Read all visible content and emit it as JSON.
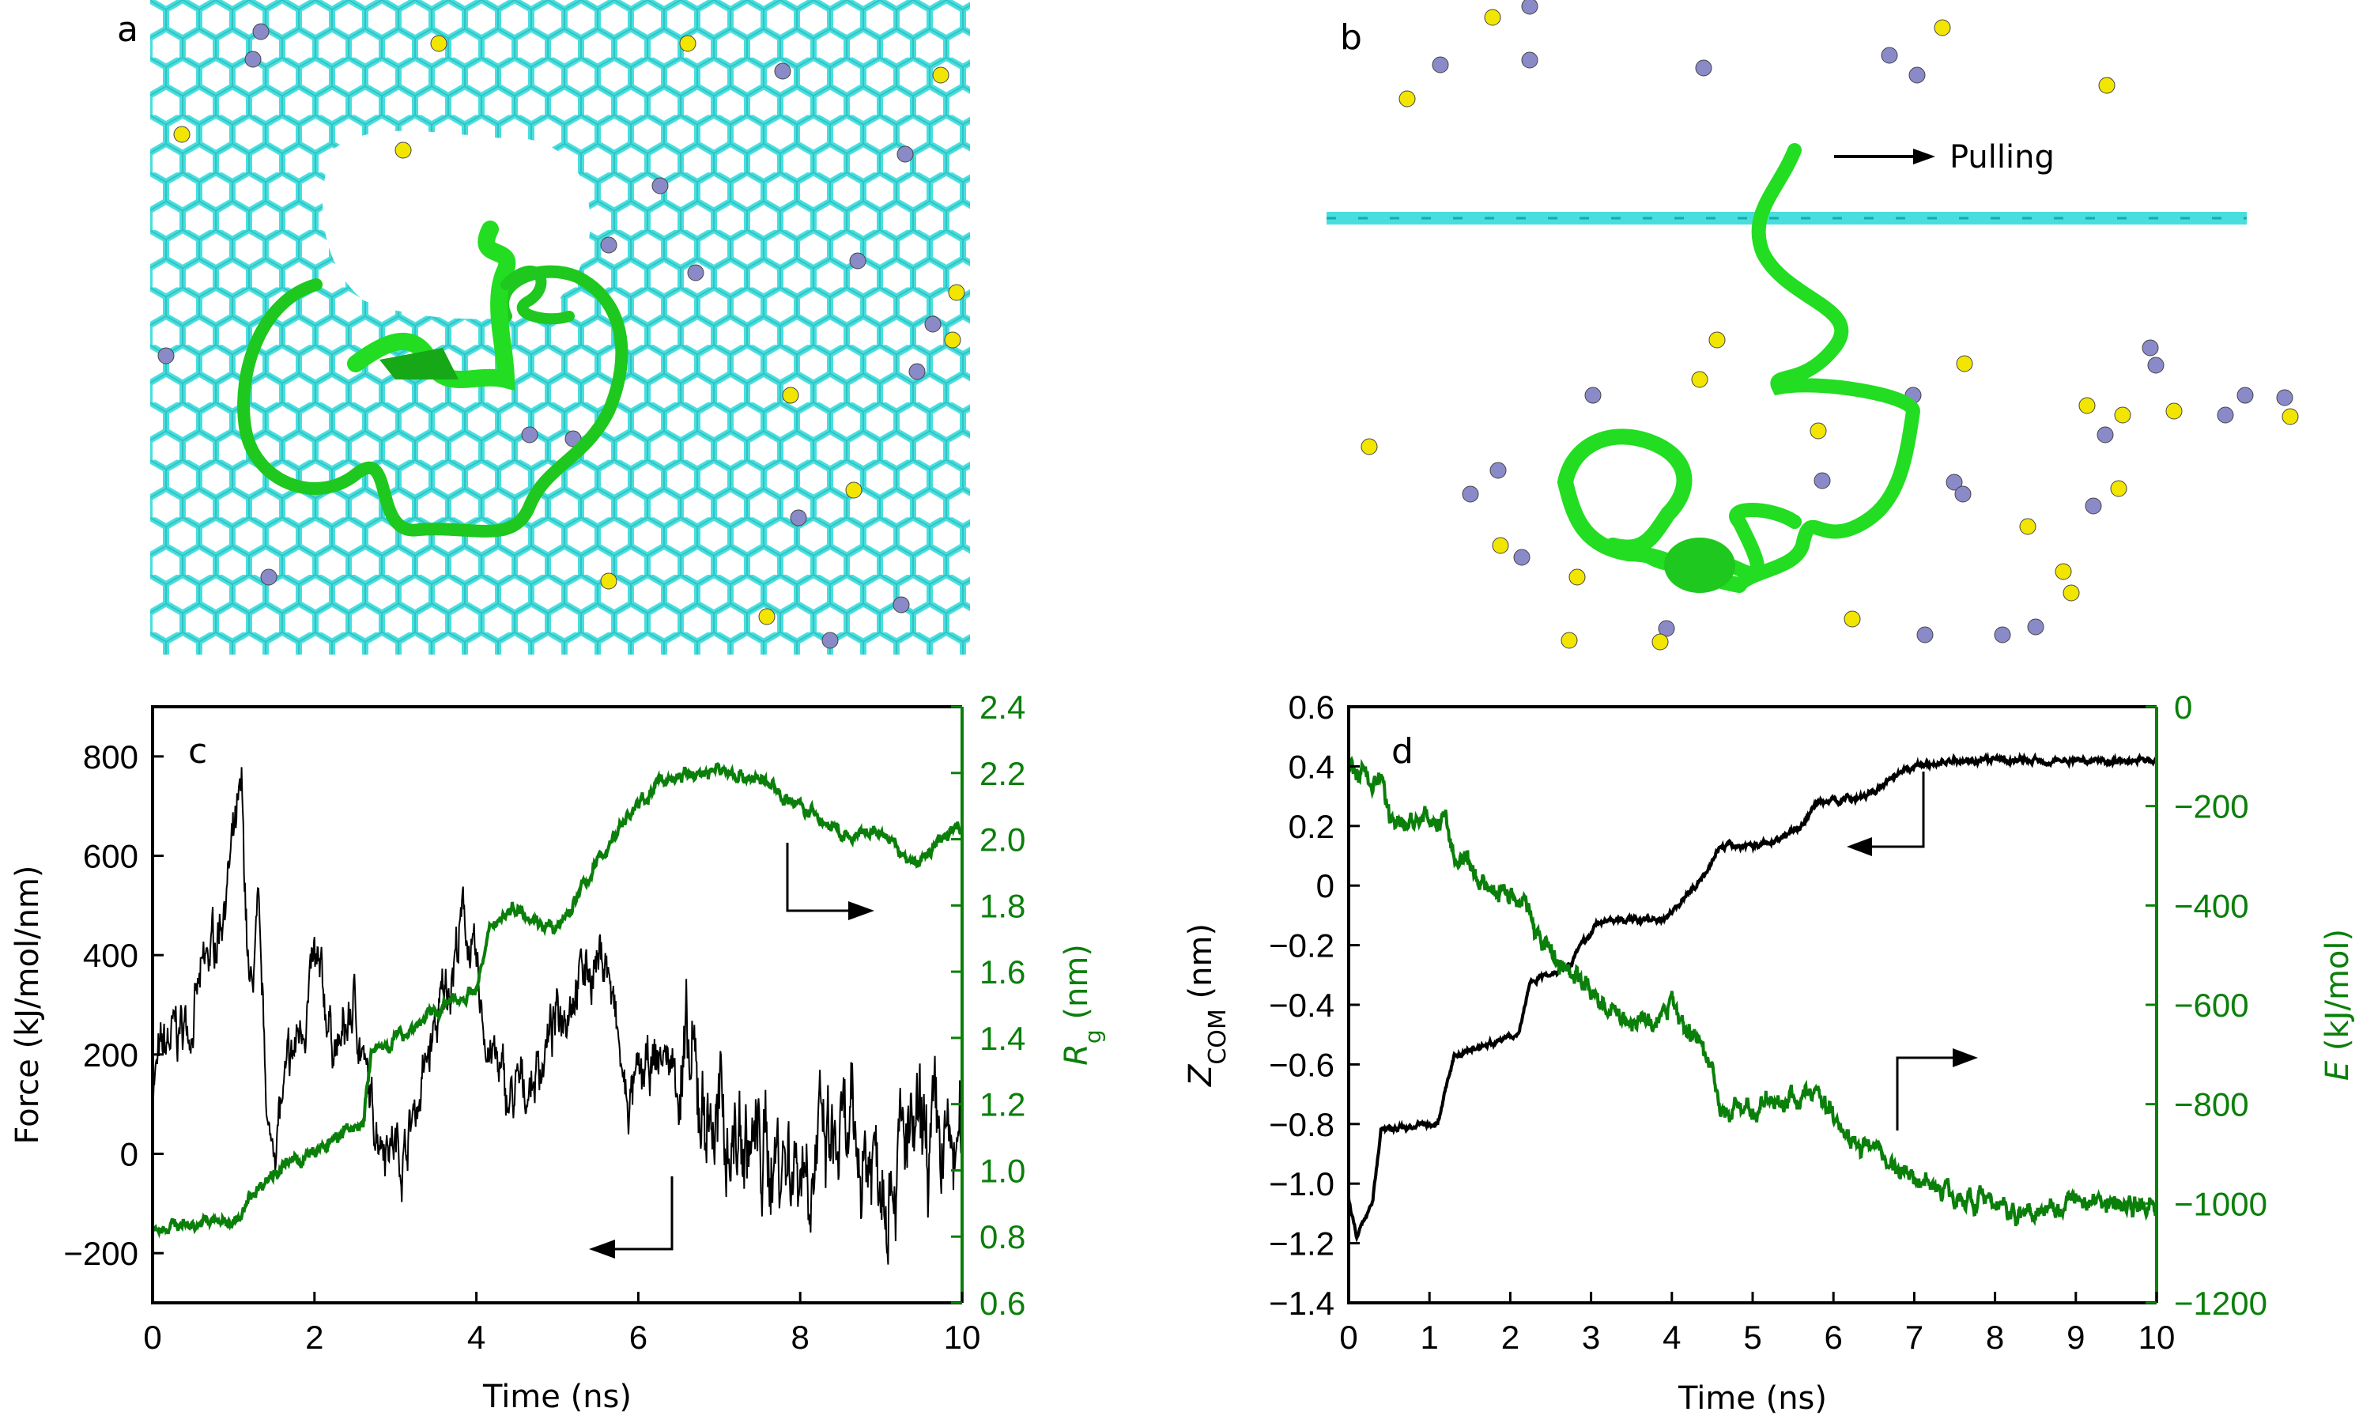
{
  "panels": {
    "a": {
      "label": "a"
    },
    "b": {
      "label": "b",
      "annotation": "Pulling"
    },
    "c": {
      "label": "c"
    },
    "d": {
      "label": "d"
    }
  },
  "colors": {
    "graphene": "#48dede",
    "peptide": "#22dd22",
    "ion_purple": "#8a8ac8",
    "ion_yellow": "#f2e600",
    "primary": "#000000",
    "secondary": "#0a7f0a"
  },
  "chart_data": [
    {
      "type": "line",
      "panel": "c",
      "xlabel": "Time (ns)",
      "ylabel": "Force (kJ/mol/nm)",
      "y2label_main": "R",
      "y2label_sub": "g",
      "y2label_unit": " (nm)",
      "xlim": [
        0,
        10
      ],
      "ylim": [
        -300,
        900
      ],
      "y2lim": [
        0.6,
        2.4
      ],
      "xticks": [
        "0",
        "2",
        "4",
        "6",
        "8",
        "10"
      ],
      "yticks": [
        "−200",
        "0",
        "200",
        "400",
        "600",
        "800"
      ],
      "y2ticks": [
        "0.6",
        "0.8",
        "1.0",
        "1.2",
        "1.4",
        "1.6",
        "1.8",
        "2.0",
        "2.2",
        "2.4"
      ],
      "grid": false,
      "series": [
        {
          "axis": "left",
          "color": "#000000",
          "x": [
            0,
            0.2,
            0.5,
            0.8,
            1.1,
            1.2,
            1.3,
            1.45,
            1.6,
            2.0,
            2.3,
            2.5,
            2.7,
            3.1,
            3.5,
            3.85,
            4.1,
            4.4,
            4.7,
            5.2,
            5.6,
            5.85,
            6.3,
            6.6,
            7.0,
            7.5,
            8,
            9,
            10
          ],
          "y": [
            150,
            220,
            280,
            450,
            700,
            300,
            450,
            0,
            100,
            370,
            200,
            300,
            80,
            0,
            250,
            480,
            250,
            100,
            150,
            350,
            400,
            100,
            200,
            150,
            50,
            0,
            0,
            0,
            0
          ]
        },
        {
          "axis": "right",
          "color": "#0a7f0a",
          "x": [
            0,
            1.1,
            1.2,
            1.5,
            2.0,
            2.6,
            2.7,
            3.5,
            4.0,
            4.2,
            4.5,
            5.0,
            5.3,
            5.8,
            6.3,
            7.0,
            7.5,
            8.0,
            8.6,
            9.0,
            9.4,
            10
          ],
          "y": [
            0.83,
            0.85,
            0.92,
            1.0,
            1.05,
            1.15,
            1.35,
            1.48,
            1.55,
            1.75,
            1.8,
            1.72,
            1.85,
            2.05,
            2.18,
            2.21,
            2.18,
            2.1,
            2.0,
            2.02,
            1.92,
            2.05
          ]
        }
      ]
    },
    {
      "type": "line",
      "panel": "d",
      "xlabel": "Time (ns)",
      "ylabel_main": "Z",
      "ylabel_sub": "COM",
      "ylabel_unit": " (nm)",
      "y2label_main": "E",
      "y2label_unit": " (kJ/mol)",
      "xlim": [
        0,
        10
      ],
      "ylim": [
        -1.4,
        0.6
      ],
      "y2lim": [
        -1200,
        0
      ],
      "xticks": [
        "0",
        "1",
        "2",
        "3",
        "4",
        "5",
        "6",
        "7",
        "8",
        "9",
        "10"
      ],
      "yticks": [
        "−1.4",
        "−1.2",
        "−1.0",
        "−0.8",
        "−0.6",
        "−0.4",
        "−0.2",
        "0",
        "0.2",
        "0.4",
        "0.6"
      ],
      "y2ticks": [
        "−1200",
        "−1000",
        "−800",
        "−600",
        "−400",
        "−200",
        "0"
      ],
      "grid": false,
      "series": [
        {
          "axis": "left",
          "color": "#000000",
          "x": [
            0,
            0.1,
            0.3,
            0.4,
            1.1,
            1.3,
            2.1,
            2.25,
            2.7,
            3.1,
            3.9,
            4.3,
            4.6,
            5.2,
            5.6,
            5.8,
            6.4,
            7.0,
            7.5,
            10
          ],
          "y": [
            -1.05,
            -1.18,
            -1.05,
            -0.82,
            -0.8,
            -0.57,
            -0.5,
            -0.32,
            -0.27,
            -0.12,
            -0.11,
            0.0,
            0.13,
            0.14,
            0.2,
            0.28,
            0.3,
            0.4,
            0.42,
            0.42
          ]
        },
        {
          "axis": "right",
          "color": "#0a7f0a",
          "x": [
            0,
            0.4,
            0.5,
            1.2,
            1.3,
            1.6,
            2.2,
            2.3,
            2.8,
            3.3,
            3.8,
            4.0,
            4.5,
            4.6,
            5.2,
            5.8,
            6.2,
            6.8,
            7.5,
            8.3,
            9,
            10
          ],
          "y": [
            -130,
            -150,
            -230,
            -230,
            -300,
            -350,
            -390,
            -460,
            -540,
            -620,
            -640,
            -600,
            -720,
            -820,
            -800,
            -780,
            -860,
            -930,
            -980,
            -1020,
            -990,
            -1010
          ]
        }
      ]
    }
  ]
}
